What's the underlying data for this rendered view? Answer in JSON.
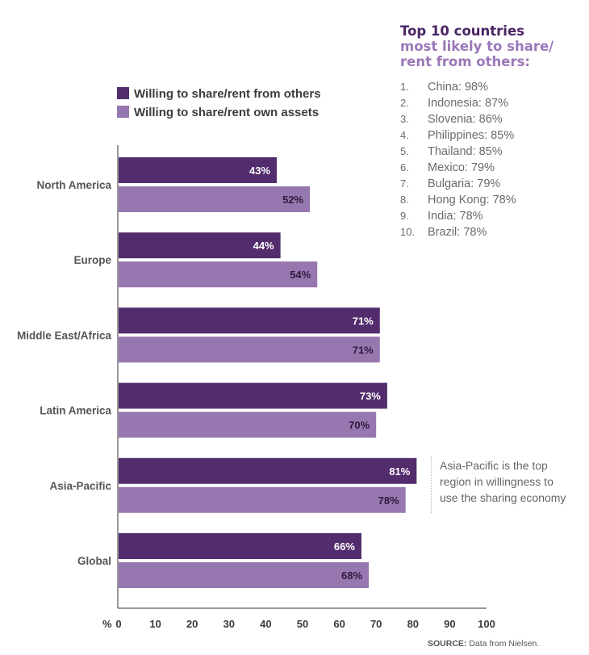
{
  "chart_data": {
    "type": "bar",
    "orientation": "horizontal",
    "categories": [
      "North America",
      "Europe",
      "Middle East/Africa",
      "Latin America",
      "Asia-Pacific",
      "Global"
    ],
    "series": [
      {
        "name": "Willing to share/rent from others",
        "values": [
          43,
          44,
          71,
          73,
          81,
          66
        ],
        "labels": [
          "43%",
          "44%",
          "71%",
          "73%",
          "81%",
          "66%"
        ],
        "color": "#532c6d"
      },
      {
        "name": "Willing to share/rent own assets",
        "values": [
          52,
          54,
          71,
          70,
          78,
          68
        ],
        "labels": [
          "52%",
          "54%",
          "71%",
          "70%",
          "78%",
          "68%"
        ],
        "color": "#9777b0"
      }
    ],
    "xlabel": "%",
    "xlim": [
      0,
      100
    ],
    "xticks": [
      "0",
      "10",
      "20",
      "30",
      "40",
      "50",
      "60",
      "70",
      "80",
      "90",
      "100"
    ],
    "grid": false,
    "legend": "top-left"
  },
  "sidebar": {
    "title_line1": "Top 10 countries",
    "title_line2": "most likely to share/",
    "title_line3": "rent from others:",
    "items": [
      {
        "rank": "1.",
        "text": "China: 98%"
      },
      {
        "rank": "2.",
        "text": "Indonesia: 87%"
      },
      {
        "rank": "3.",
        "text": "Slovenia: 86%"
      },
      {
        "rank": "4.",
        "text": "Philippines: 85%"
      },
      {
        "rank": "5.",
        "text": "Thailand: 85%"
      },
      {
        "rank": "6.",
        "text": "Mexico: 79%"
      },
      {
        "rank": "7.",
        "text": "Bulgaria: 79%"
      },
      {
        "rank": "8.",
        "text": "Hong Kong: 78%"
      },
      {
        "rank": "9.",
        "text": "India: 78%"
      },
      {
        "rank": "10.",
        "text": "Brazil: 78%"
      }
    ]
  },
  "annotation": {
    "line1": "Asia-Pacific is the top",
    "line2": "region in willingness to",
    "line3": "use the sharing economy"
  },
  "source": {
    "label": "SOURCE:",
    "text": "Data from Nielsen."
  }
}
